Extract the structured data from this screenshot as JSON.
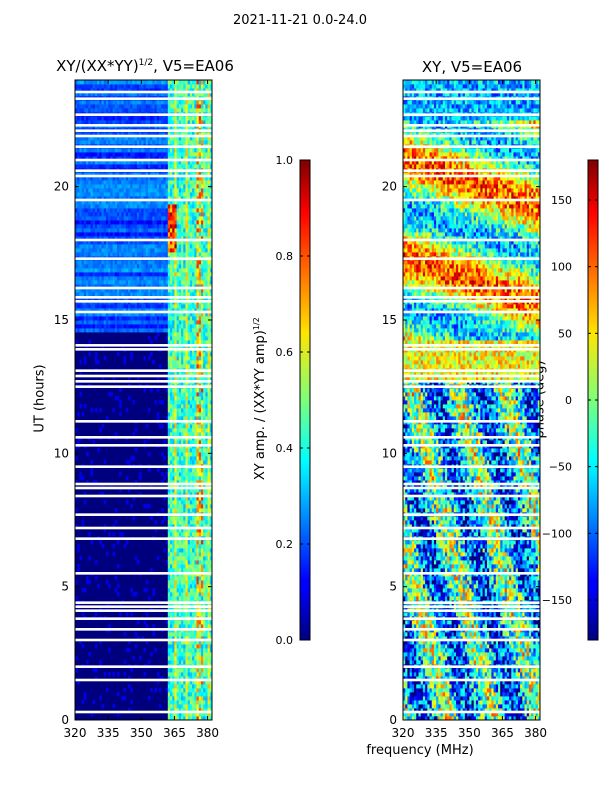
{
  "suptitle": "2021-11-21 0.0-24.0",
  "chart_data": [
    {
      "type": "heatmap",
      "title_main": "XY/(XX*YY)",
      "title_sup": "1/2",
      "title_rest": ", V5=EA06",
      "xlabel": "",
      "ylabel": "UT (hours)",
      "xlim": [
        320,
        382
      ],
      "ylim": [
        0,
        24
      ],
      "xticks": [
        320,
        335,
        350,
        365,
        380
      ],
      "yticks": [
        0,
        5,
        10,
        15,
        20
      ],
      "colorbar": {
        "label": "XY amp. / (XX*YY amp)",
        "label_sup": "1/2",
        "range": [
          0.0,
          1.0
        ],
        "ticks": [
          "0.0",
          "0.2",
          "0.4",
          "0.6",
          "0.8",
          "1.0"
        ],
        "tick_values": [
          0.0,
          0.2,
          0.4,
          0.6,
          0.8,
          1.0
        ]
      }
    },
    {
      "type": "heatmap",
      "title_main": "XY, V5=EA06",
      "xlabel": "frequency (MHz)",
      "ylabel": "",
      "xlim": [
        320,
        382
      ],
      "ylim": [
        0,
        24
      ],
      "xticks": [
        320,
        335,
        350,
        365,
        380
      ],
      "yticks": [
        0,
        5,
        10,
        15,
        20
      ],
      "colorbar": {
        "label": "phase (deg)",
        "range": [
          -180,
          180
        ],
        "ticks": [
          "150",
          "100",
          "50",
          "0",
          "−50",
          "−100",
          "−150"
        ],
        "tick_values": [
          150,
          100,
          50,
          0,
          -50,
          -100,
          -150
        ]
      }
    }
  ],
  "flagged_ut_hours": [
    0.3,
    1.5,
    2.0,
    3.0,
    3.4,
    3.8,
    4.1,
    4.25,
    4.4,
    5.5,
    6.8,
    7.2,
    7.7,
    8.4,
    8.7,
    8.85,
    9.5,
    10.3,
    10.6,
    11.2,
    12.5,
    12.7,
    12.9,
    13.1,
    13.9,
    14.05,
    15.3,
    15.7,
    15.85,
    16.2,
    17.3,
    18.0,
    19.5,
    20.4,
    20.6,
    21.0,
    21.5,
    21.9,
    22.1,
    22.3,
    22.7,
    23.3,
    23.55
  ]
}
